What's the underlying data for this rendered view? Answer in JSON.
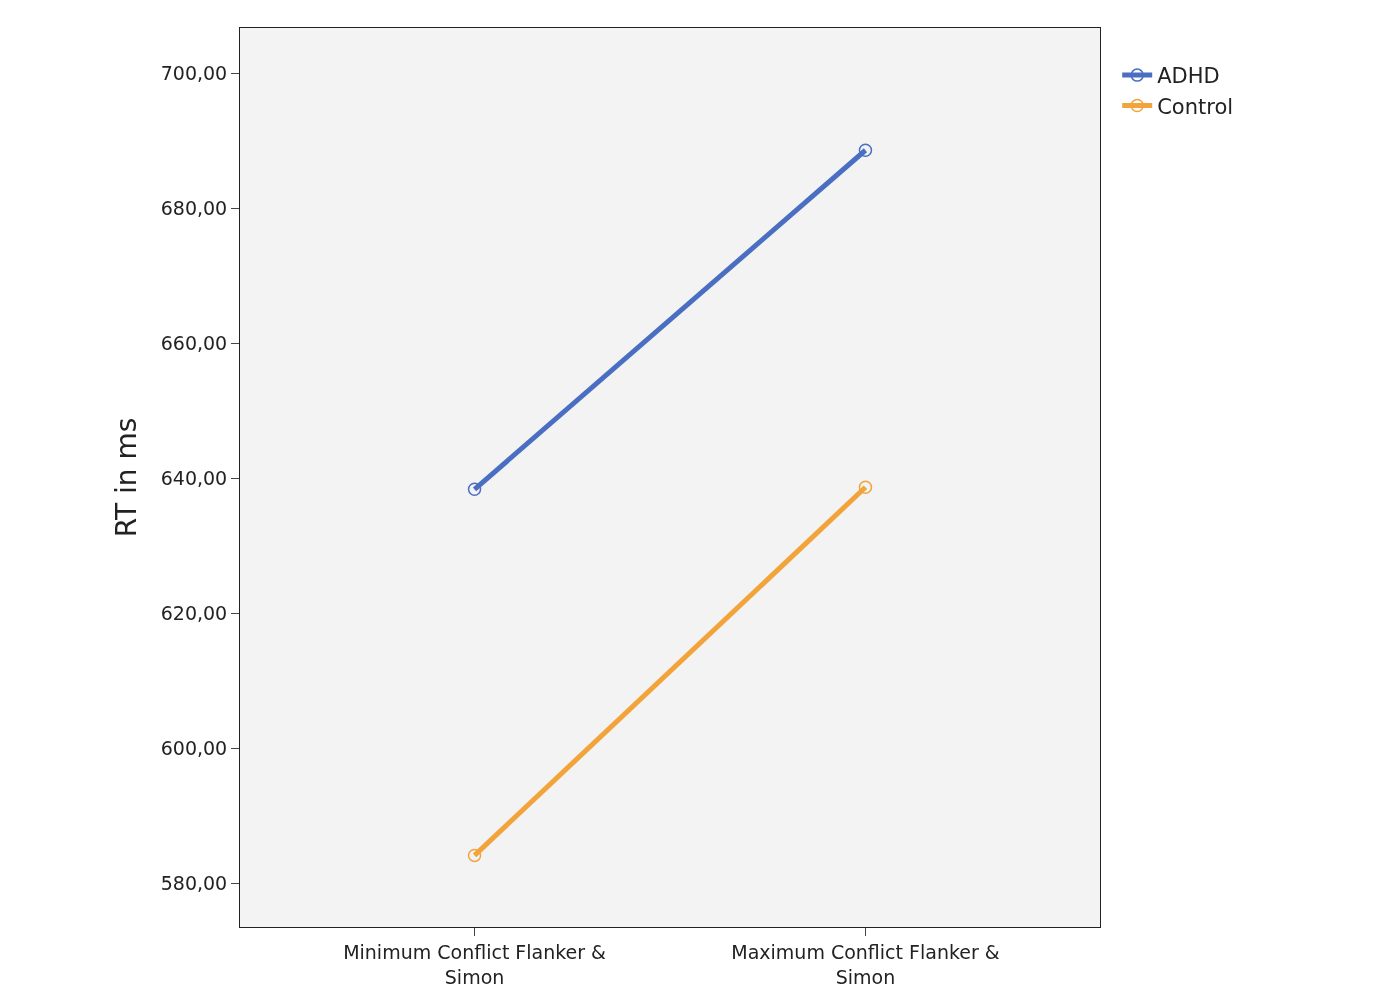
{
  "chart_data": {
    "type": "line",
    "ylabel": "RT in ms",
    "categories": [
      "Minimum Conflict Flanker & Simon",
      "Maximum Conflict Flanker & Simon"
    ],
    "series": [
      {
        "name": "ADHD",
        "color": "#4a6fc2",
        "values": [
          638.4,
          688.6
        ]
      },
      {
        "name": "Control",
        "color": "#f2a33a",
        "values": [
          584.2,
          638.7
        ]
      }
    ],
    "ylim": [
      573.6,
      706.7
    ],
    "yticks": [
      {
        "value": 580,
        "label": "580,00"
      },
      {
        "value": 600,
        "label": "600,00"
      },
      {
        "value": 620,
        "label": "620,00"
      },
      {
        "value": 640,
        "label": "640,00"
      },
      {
        "value": 660,
        "label": "660,00"
      },
      {
        "value": 680,
        "label": "680,00"
      },
      {
        "value": 700,
        "label": "700,00"
      }
    ],
    "grid": false,
    "legend": "top right",
    "marker": "circle",
    "line_style": "solid"
  }
}
